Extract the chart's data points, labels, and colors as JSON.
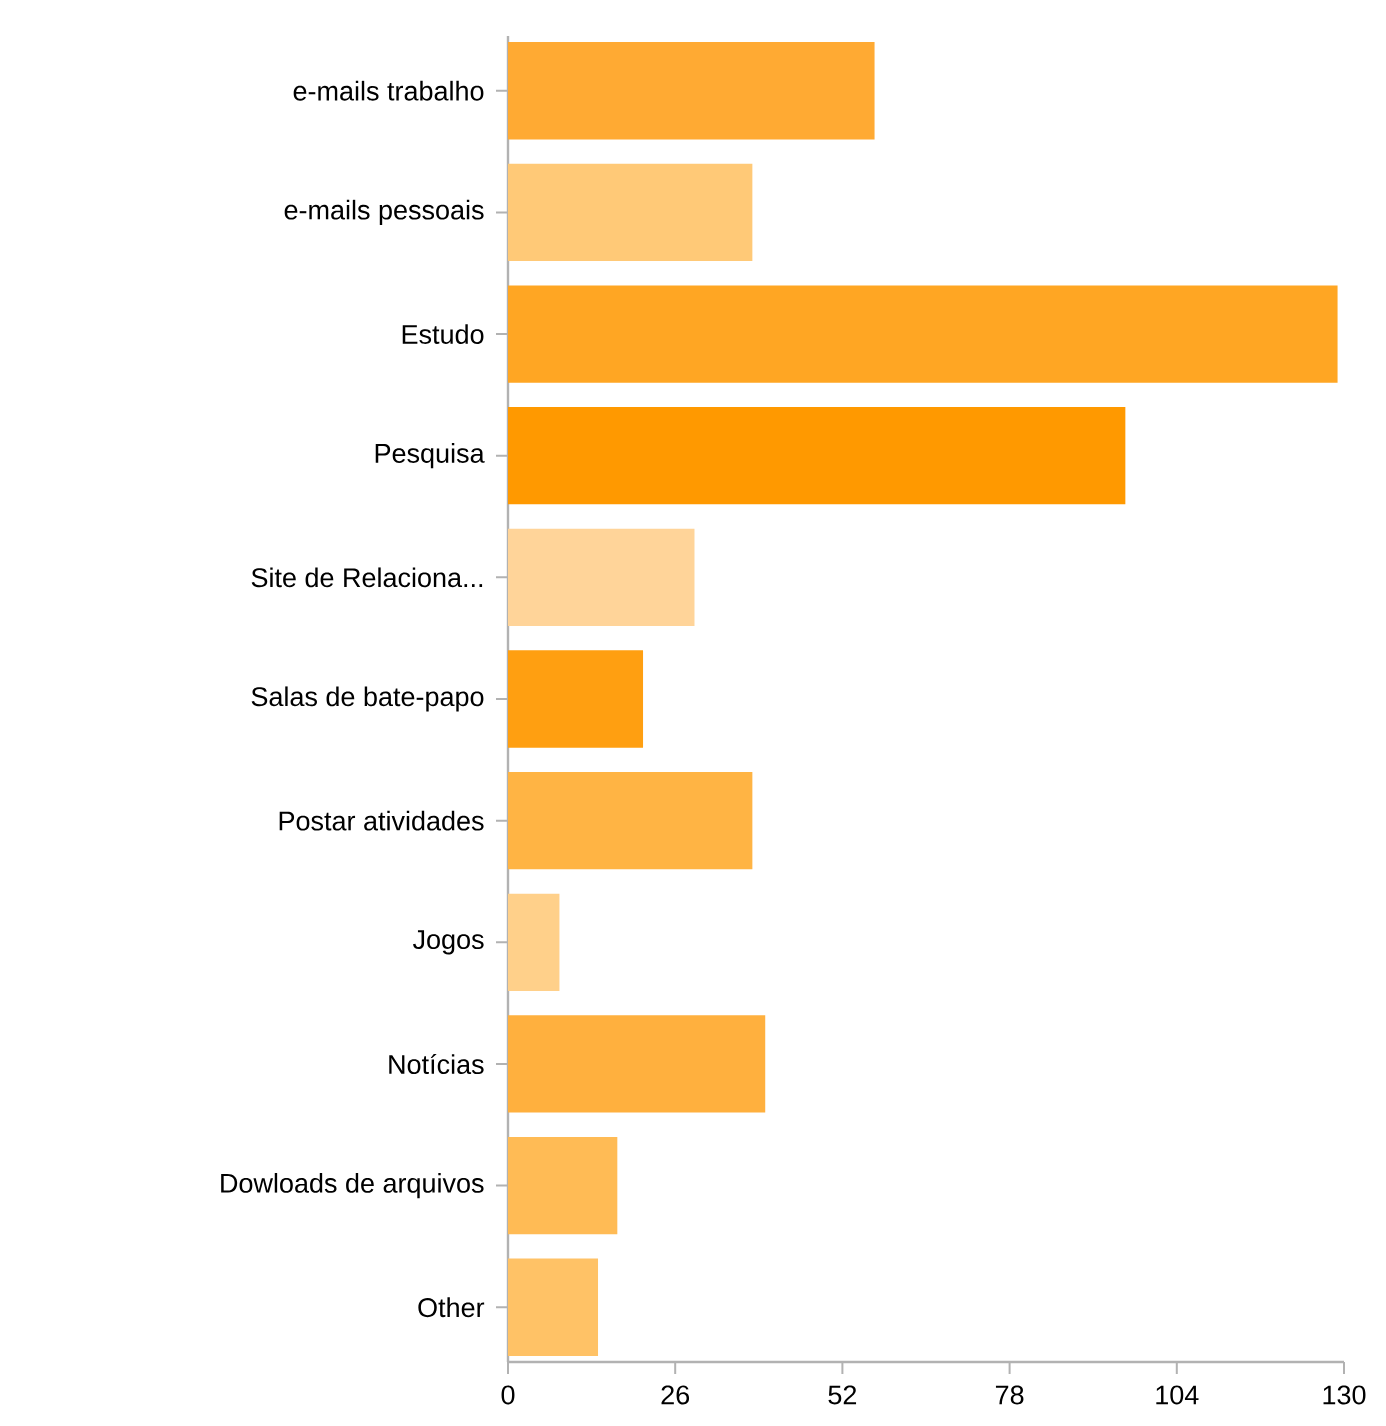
{
  "chart_data": {
    "type": "bar",
    "orientation": "horizontal",
    "categories": [
      "e-mails trabalho",
      "e-mails pessoais",
      "Estudo",
      "Pesquisa",
      "Site de Relaciona...",
      "Salas de bate-papo",
      "Postar atividades",
      "Jogos",
      "Notícias",
      "Dowloads de arquivos",
      "Other"
    ],
    "values": [
      57,
      38,
      129,
      96,
      29,
      21,
      38,
      8,
      40,
      17,
      14
    ],
    "colors": [
      "#ffaa33",
      "#ffc977",
      "#ffa623",
      "#ff9900",
      "#ffd499",
      "#ff9f11",
      "#ffb444",
      "#ffd08a",
      "#ffb03e",
      "#ffbb55",
      "#ffc266"
    ],
    "xlim": [
      0,
      130
    ],
    "xticks": [
      0,
      26,
      52,
      78,
      104,
      130
    ]
  }
}
